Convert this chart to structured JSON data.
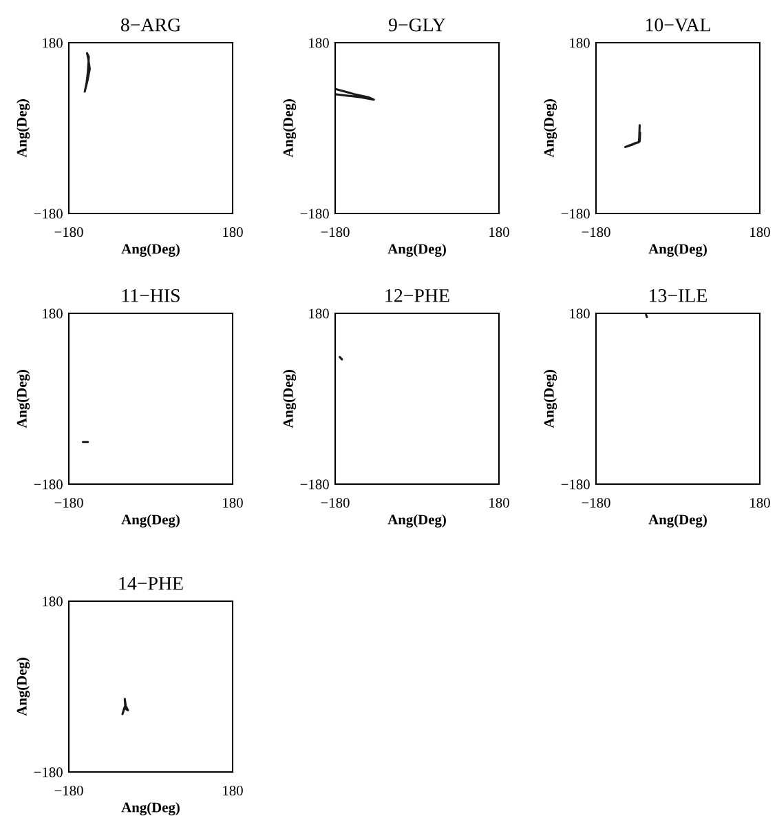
{
  "chart_data": [
    {
      "type": "line",
      "title": "8−ARG",
      "xlabel": "Ang(Deg)",
      "ylabel": "Ang(Deg)",
      "xlim": [
        -180,
        180
      ],
      "ylim": [
        -180,
        180
      ],
      "xticks": [
        -180,
        180
      ],
      "yticks": [
        -180,
        180
      ],
      "line_style": "solid",
      "series": [
        {
          "color": "#1a1a1a",
          "x": [
            -139,
            -136,
            -138,
            -141,
            -145,
            -139,
            -134,
            -137,
            -140
          ],
          "values": [
            156,
            150,
            120,
            95,
            77,
            100,
            125,
            145,
            158
          ]
        }
      ]
    },
    {
      "type": "line",
      "title": "9−GLY",
      "xlabel": "Ang(Deg)",
      "ylabel": "Ang(Deg)",
      "xlim": [
        -180,
        180
      ],
      "ylim": [
        -180,
        180
      ],
      "xticks": [
        -180,
        180
      ],
      "yticks": [
        -180,
        180
      ],
      "line_style": "solid",
      "series": [
        {
          "color": "#1a1a1a",
          "x": [
            -178,
            -140,
            -107,
            -95,
            -130,
            -178,
            -150,
            -100
          ],
          "values": [
            82,
            72,
            65,
            60,
            66,
            71,
            68,
            62
          ]
        }
      ]
    },
    {
      "type": "line",
      "title": "10−VAL",
      "xlabel": "Ang(Deg)",
      "ylabel": "Ang(Deg)",
      "xlim": [
        -180,
        180
      ],
      "ylim": [
        -180,
        180
      ],
      "xticks": [
        -180,
        180
      ],
      "yticks": [
        -180,
        180
      ],
      "line_style": "solid",
      "series": [
        {
          "color": "#1a1a1a",
          "x": [
            -84,
            -85,
            -86,
            -95,
            -105,
            -116,
            -100,
            -84,
            -83
          ],
          "values": [
            6,
            -20,
            -30,
            -32,
            -36,
            -40,
            -35,
            -28,
            -10
          ]
        }
      ]
    },
    {
      "type": "line",
      "title": "11−HIS",
      "xlabel": "Ang(Deg)",
      "ylabel": "Ang(Deg)",
      "xlim": [
        -180,
        180
      ],
      "ylim": [
        -180,
        180
      ],
      "xticks": [
        -180,
        180
      ],
      "yticks": [
        -180,
        180
      ],
      "line_style": "solid",
      "series": [
        {
          "color": "#1a1a1a",
          "x": [
            -149,
            -138
          ],
          "values": [
            -91,
            -91
          ]
        }
      ]
    },
    {
      "type": "line",
      "title": "12−PHE",
      "xlabel": "Ang(Deg)",
      "ylabel": "Ang(Deg)",
      "xlim": [
        -180,
        180
      ],
      "ylim": [
        -180,
        180
      ],
      "xticks": [
        -180,
        180
      ],
      "yticks": [
        -180,
        180
      ],
      "line_style": "solid",
      "series": [
        {
          "color": "#1a1a1a",
          "x": [
            -170,
            -165
          ],
          "values": [
            88,
            83
          ]
        }
      ]
    },
    {
      "type": "line",
      "title": "13−ILE",
      "xlabel": "Ang(Deg)",
      "ylabel": "Ang(Deg)",
      "xlim": [
        -180,
        180
      ],
      "ylim": [
        -180,
        180
      ],
      "xticks": [
        -180,
        180
      ],
      "yticks": [
        -180,
        180
      ],
      "line_style": "solid",
      "series": [
        {
          "color": "#1a1a1a",
          "x": [
            -70,
            -68
          ],
          "values": [
            177,
            172
          ]
        }
      ]
    },
    {
      "type": "line",
      "title": "14−PHE",
      "xlabel": "Ang(Deg)",
      "ylabel": "Ang(Deg)",
      "xlim": [
        -180,
        180
      ],
      "ylim": [
        -180,
        180
      ],
      "xticks": [
        -180,
        180
      ],
      "yticks": [
        -180,
        180
      ],
      "line_style": "solid",
      "series": [
        {
          "color": "#1a1a1a",
          "x": [
            -57,
            -55,
            -50,
            -58,
            -62,
            -56,
            -57
          ],
          "values": [
            -26,
            -40,
            -50,
            -45,
            -58,
            -40,
            -28
          ]
        }
      ]
    }
  ]
}
